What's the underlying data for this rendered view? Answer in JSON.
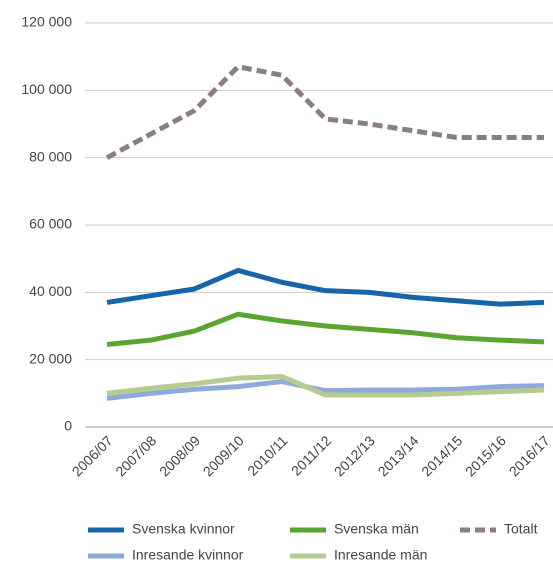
{
  "chart_data": {
    "type": "line",
    "categories": [
      "2006/07",
      "2007/08",
      "2008/09",
      "2009/10",
      "2010/11",
      "2011/12",
      "2012/13",
      "2013/14",
      "2014/15",
      "2015/16",
      "2016/17"
    ],
    "series": [
      {
        "name": "Svenska kvinnor",
        "color": "#1565a8",
        "values": [
          37000,
          39000,
          41000,
          46500,
          43000,
          40500,
          40000,
          38500,
          37500,
          36500,
          37000
        ]
      },
      {
        "name": "Svenska män",
        "color": "#5aa532",
        "values": [
          24500,
          25800,
          28500,
          33500,
          31500,
          30000,
          29000,
          28000,
          26500,
          25800,
          25300
        ]
      },
      {
        "name": "Totalt",
        "color": "#8b7f7c",
        "dashed": true,
        "values": [
          80000,
          87000,
          94000,
          107000,
          104500,
          91500,
          90000,
          88000,
          86000,
          86000,
          86000
        ]
      },
      {
        "name": "Inresande kvinnor",
        "color": "#8eaadb",
        "values": [
          8500,
          10000,
          11200,
          12000,
          13500,
          10800,
          11000,
          11000,
          11200,
          12000,
          12300
        ]
      },
      {
        "name": "Inresande män",
        "color": "#b5cc8e",
        "values": [
          10000,
          11500,
          12800,
          14500,
          15000,
          9500,
          9500,
          9500,
          10000,
          10500,
          11000
        ]
      }
    ],
    "ylim": [
      0,
      120000
    ],
    "yticks": [
      0,
      {
        "value": 20000,
        "label": "20 000"
      },
      {
        "value": 40000,
        "label": "40 000"
      },
      {
        "value": 60000,
        "label": "60 000"
      },
      {
        "value": 80000,
        "label": "80 000"
      },
      {
        "value": 100000,
        "label": "100 000"
      },
      {
        "value": 120000,
        "label": "120 000"
      }
    ],
    "grid": true
  }
}
